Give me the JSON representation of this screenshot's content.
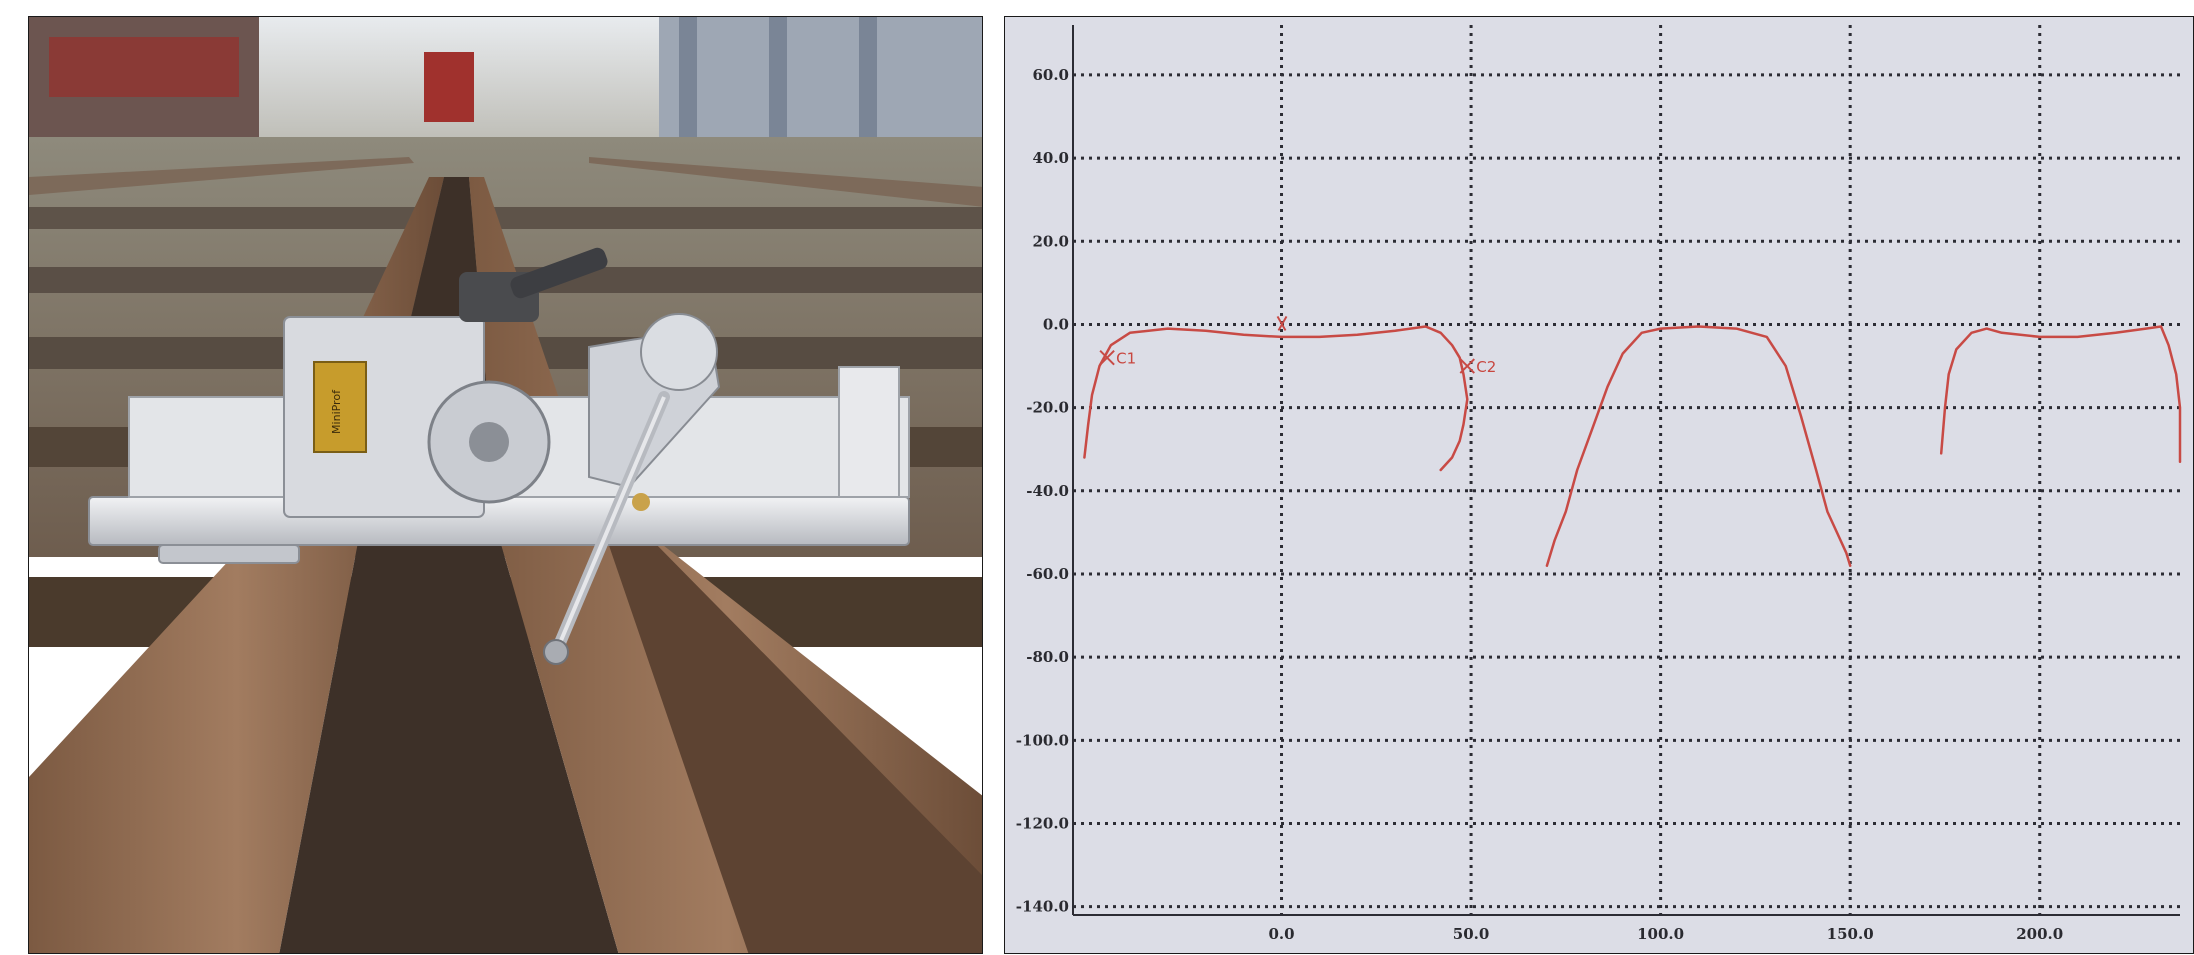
{
  "photo": {
    "device_plate_text": "MiniProf",
    "description_colors": {
      "rail": "#6a4a36",
      "device": "#d9dbe0",
      "sky": "#e9ecef"
    }
  },
  "chart_data": {
    "type": "line",
    "title": "",
    "xlabel": "",
    "ylabel": "",
    "xlim": [
      -55,
      237
    ],
    "ylim": [
      -142,
      72
    ],
    "xticks": [
      0,
      50,
      100,
      150,
      200
    ],
    "xtick_labels": [
      "0.0",
      "50.0",
      "100.0",
      "150.0",
      "200.0"
    ],
    "yticks": [
      60,
      40,
      20,
      0,
      -20,
      -40,
      -60,
      -80,
      -100,
      -120,
      -140
    ],
    "ytick_labels": [
      "60.0",
      "40.0",
      "20.0",
      "0.0",
      "-20.0",
      "-40.0",
      "-60.0",
      "-80.0",
      "-100.0",
      "-120.0",
      "-140.0"
    ],
    "grid": true,
    "line_color": "#c84a45",
    "series": [
      {
        "x": [
          -52,
          -51,
          -50,
          -48,
          -45,
          -40,
          -30,
          -20,
          -10,
          0,
          10,
          20,
          30,
          38,
          42,
          45,
          47,
          48,
          49,
          48,
          47,
          45,
          42
        ],
        "y": [
          -32,
          -24,
          -17,
          -10,
          -5,
          -2,
          -1,
          -1.5,
          -2.5,
          -3,
          -3,
          -2.5,
          -1.5,
          -0.5,
          -2,
          -5,
          -8,
          -12,
          -18,
          -24,
          -28,
          -32,
          -35
        ]
      },
      {
        "x": [
          70,
          72,
          75,
          78,
          82,
          86,
          90,
          95,
          100,
          110,
          120,
          128,
          133,
          137,
          141,
          144,
          147,
          149,
          150
        ],
        "y": [
          -58,
          -52,
          -45,
          -35,
          -25,
          -15,
          -7,
          -2,
          -1,
          -0.5,
          -1,
          -3,
          -10,
          -22,
          -35,
          -45,
          -51,
          -55,
          -58
        ]
      },
      {
        "x": [
          174,
          175,
          176,
          178,
          182,
          186,
          190,
          200,
          210,
          220,
          228,
          232,
          234,
          236,
          237,
          237
        ],
        "y": [
          -31,
          -20,
          -12,
          -6,
          -2,
          -1,
          -2,
          -3,
          -3,
          -2,
          -1,
          -0.5,
          -5,
          -12,
          -20,
          -33
        ]
      }
    ],
    "annotations": [
      {
        "text": "C1",
        "x": -46,
        "y": -8
      },
      {
        "text": "C2",
        "x": 49,
        "y": -10
      }
    ]
  }
}
